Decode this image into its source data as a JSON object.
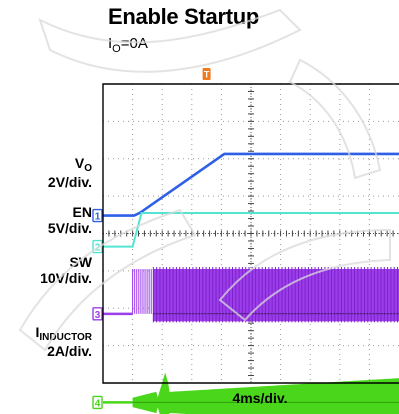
{
  "title": "Enable Startup",
  "condition": {
    "main": "I",
    "sub": "O",
    "rest": "=0A"
  },
  "time_scale": "4ms/div.",
  "channels": [
    {
      "id": "vo",
      "name_main": "V",
      "name_sub": "O",
      "scale": "2V/div.",
      "marker": "1",
      "color": "#2f5fe6"
    },
    {
      "id": "en",
      "name_main": "EN",
      "name_sub": "",
      "scale": "5V/div.",
      "marker": "2",
      "color": "#52e5d2"
    },
    {
      "id": "sw",
      "name_main": "SW",
      "name_sub": "",
      "scale": "10V/div.",
      "marker": "3",
      "color": "#9b3de8"
    },
    {
      "id": "inductor",
      "name_main": "I",
      "name_sub": "INDUCTOR",
      "scale": "2A/div.",
      "marker": "4",
      "color": "#4ad61a"
    }
  ],
  "trigger_marker": "T",
  "colors": {
    "trigger": "#f07a1e",
    "grid": "#9a9a9a",
    "frame": "#000000"
  },
  "chart_data": {
    "type": "line",
    "title": "Enable Startup",
    "subtitle": "IO=0A",
    "xlabel": "4ms/div.",
    "x_divisions": 10,
    "y_divisions": 8,
    "grid": true,
    "series": [
      {
        "name": "VO",
        "units": "V",
        "per_div": 2,
        "points": [
          [
            0,
            0
          ],
          [
            1.05,
            0
          ],
          [
            1.25,
            0.15
          ],
          [
            4.1,
            3.3
          ],
          [
            10,
            3.3
          ]
        ]
      },
      {
        "name": "EN",
        "units": "V",
        "per_div": 5,
        "points": [
          [
            0,
            0
          ],
          [
            1.0,
            0
          ],
          [
            1.3,
            4.5
          ],
          [
            10,
            4.5
          ]
        ]
      },
      {
        "name": "SW",
        "units": "V",
        "per_div": 10,
        "envelope": {
          "start_div": 1.0,
          "full_div": 1.7,
          "high": 12,
          "low": -2
        }
      },
      {
        "name": "IINDUCTOR",
        "units": "A",
        "per_div": 2,
        "envelope": {
          "start_div": 1.0,
          "spike_div": 2.1,
          "spike_amp": 1.6,
          "amp": 0.55,
          "grow_to": 1.3
        }
      }
    ]
  }
}
